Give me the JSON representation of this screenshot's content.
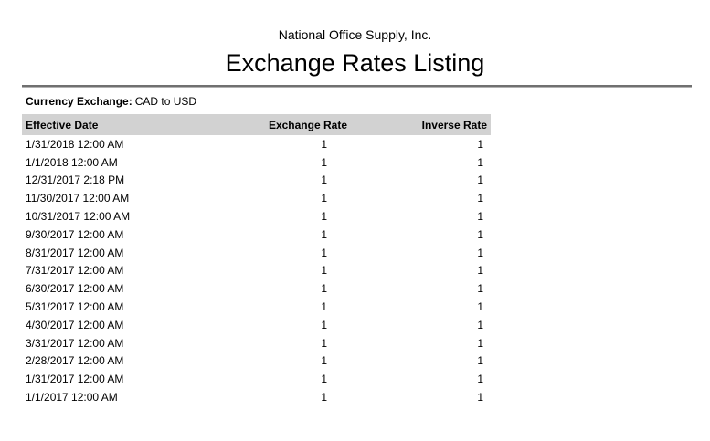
{
  "report": {
    "company": "National Office Supply, Inc.",
    "title": "Exchange Rates Listing"
  },
  "filter": {
    "label": "Currency Exchange:",
    "value": "CAD to USD"
  },
  "table": {
    "columns": [
      "Effective Date",
      "Exchange Rate",
      "Inverse Rate"
    ],
    "rows": [
      {
        "effective_date": "1/31/2018 12:00 AM",
        "exchange_rate": "1",
        "inverse_rate": "1"
      },
      {
        "effective_date": "1/1/2018 12:00 AM",
        "exchange_rate": "1",
        "inverse_rate": "1"
      },
      {
        "effective_date": "12/31/2017 2:18 PM",
        "exchange_rate": "1",
        "inverse_rate": "1"
      },
      {
        "effective_date": "11/30/2017 12:00 AM",
        "exchange_rate": "1",
        "inverse_rate": "1"
      },
      {
        "effective_date": "10/31/2017 12:00 AM",
        "exchange_rate": "1",
        "inverse_rate": "1"
      },
      {
        "effective_date": "9/30/2017 12:00 AM",
        "exchange_rate": "1",
        "inverse_rate": "1"
      },
      {
        "effective_date": "8/31/2017 12:00 AM",
        "exchange_rate": "1",
        "inverse_rate": "1"
      },
      {
        "effective_date": "7/31/2017 12:00 AM",
        "exchange_rate": "1",
        "inverse_rate": "1"
      },
      {
        "effective_date": "6/30/2017 12:00 AM",
        "exchange_rate": "1",
        "inverse_rate": "1"
      },
      {
        "effective_date": "5/31/2017 12:00 AM",
        "exchange_rate": "1",
        "inverse_rate": "1"
      },
      {
        "effective_date": "4/30/2017 12:00 AM",
        "exchange_rate": "1",
        "inverse_rate": "1"
      },
      {
        "effective_date": "3/31/2017 12:00 AM",
        "exchange_rate": "1",
        "inverse_rate": "1"
      },
      {
        "effective_date": "2/28/2017 12:00 AM",
        "exchange_rate": "1",
        "inverse_rate": "1"
      },
      {
        "effective_date": "1/31/2017 12:00 AM",
        "exchange_rate": "1",
        "inverse_rate": "1"
      },
      {
        "effective_date": "1/1/2017 12:00 AM",
        "exchange_rate": "1",
        "inverse_rate": "1"
      }
    ]
  },
  "colors": {
    "header_bg": "#D2D2D2",
    "rule_dark": "#707070",
    "rule_light": "#B2B2B2"
  }
}
